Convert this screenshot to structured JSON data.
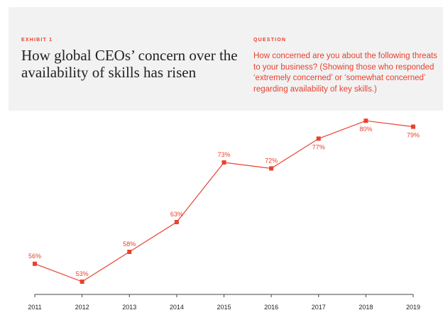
{
  "header": {
    "exhibit": "EXHIBIT 1",
    "title": "How global CEOs’ concern over the availability of skills has risen",
    "question_label": "QUESTION",
    "question": "How concerned are you about the following threats to your business? (Showing those who responded ‘extremely concerned’ or ‘somewhat concerned’ regarding availability of key skills.)"
  },
  "chart_data": {
    "type": "line",
    "title": "How global CEOs’ concern over the availability of skills has risen",
    "categories": [
      "2011",
      "2012",
      "2013",
      "2014",
      "2015",
      "2016",
      "2017",
      "2018",
      "2019"
    ],
    "values": [
      56,
      53,
      58,
      63,
      73,
      72,
      77,
      80,
      79
    ],
    "labels": [
      "56%",
      "53%",
      "58%",
      "63%",
      "73%",
      "72%",
      "77%",
      "80%",
      "79%"
    ],
    "label_position": [
      "above",
      "above",
      "above",
      "above",
      "above",
      "above",
      "below",
      "below",
      "below"
    ],
    "xlabel": "",
    "ylabel": "",
    "ylim": [
      50.9,
      82
    ],
    "grid": false,
    "color": "#e8412f"
  }
}
